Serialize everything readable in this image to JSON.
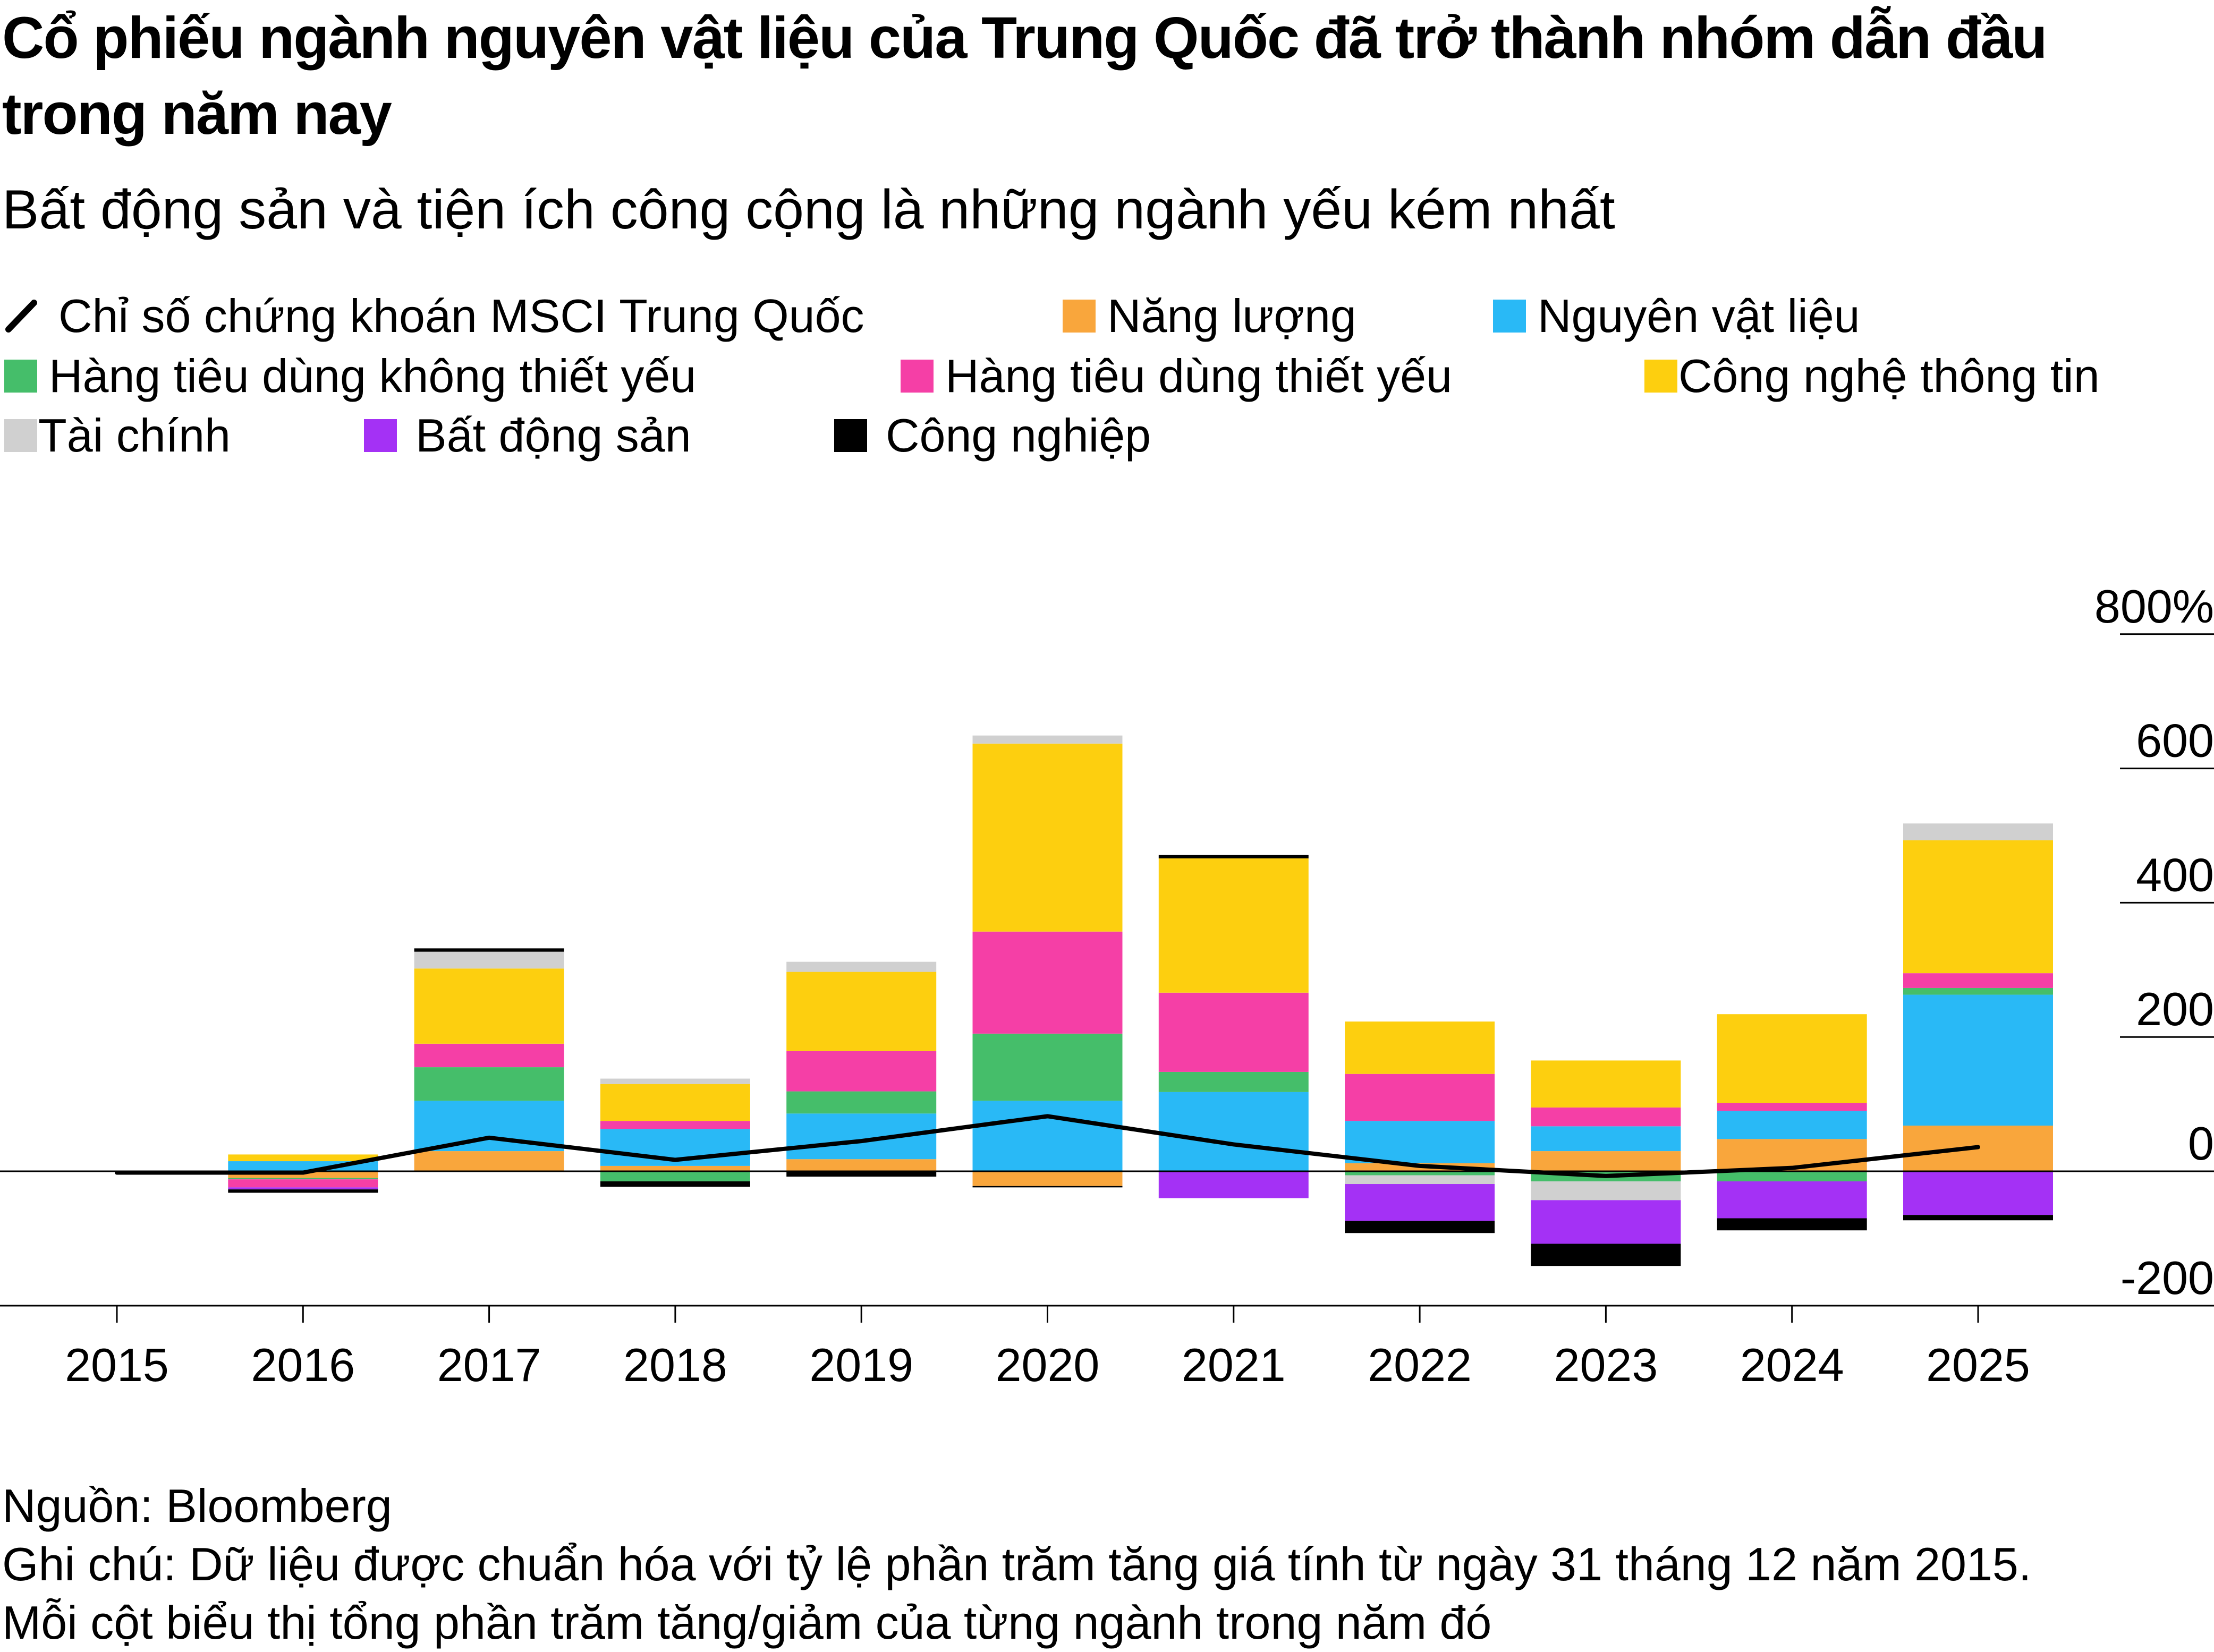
{
  "header": {
    "title": "Cổ phiếu ngành nguyên vật liệu của Trung Quốc đã trở thành nhóm dẫn đầu trong năm nay",
    "subtitle": "Bất động sản và tiện ích công cộng là những ngành yếu kém nhất"
  },
  "legend": {
    "index": {
      "label": "Chỉ số chứng khoán MSCI Trung Quốc",
      "color": "#000000"
    },
    "energy": {
      "label": "Năng lượng",
      "color": "#F9A63C"
    },
    "materials": {
      "label": "Nguyên vật liệu",
      "color": "#29B9F6"
    },
    "discretionary": {
      "label": "Hàng tiêu dùng không thiết yếu",
      "color": "#45BE6A"
    },
    "staples": {
      "label": "Hàng tiêu dùng thiết yếu",
      "color": "#F53FA6"
    },
    "it": {
      "label": "Công nghệ thông tin",
      "color": "#FDCF0F"
    },
    "financials": {
      "label": "Tài chính",
      "color": "#D0D0D0"
    },
    "realestate": {
      "label": "Bất động sản",
      "color": "#A431F5"
    },
    "industrials": {
      "label": "Công nghiệp",
      "color": "#000000"
    }
  },
  "footer": {
    "source": "Nguồn: Bloomberg",
    "note1": "Ghi chú: Dữ liệu được chuẩn hóa với tỷ lệ phần trăm tăng giá tính từ ngày 31 tháng 12 năm 2015.",
    "note2": "Mỗi cột biểu thị tổng phần trăm tăng/giảm của từng ngành trong năm đó"
  },
  "chart_data": {
    "type": "bar",
    "stacked": true,
    "title": "Cổ phiếu ngành nguyên vật liệu của Trung Quốc đã trở thành nhóm dẫn đầu trong năm nay",
    "xlabel": "",
    "ylabel": "",
    "ylim": [
      -200,
      800
    ],
    "yticks": [
      -200,
      0,
      200,
      400,
      600,
      800
    ],
    "ytick_labels": [
      "-200",
      "0",
      "200",
      "400",
      "600",
      "800%"
    ],
    "grid": true,
    "legend_position": "top",
    "categories": [
      "2015",
      "2016",
      "2017",
      "2018",
      "2019",
      "2020",
      "2021",
      "2022",
      "2023",
      "2024",
      "2025"
    ],
    "series": [
      {
        "key": "energy",
        "name": "Năng lượng",
        "color": "#F9A63C",
        "values": [
          0,
          -10,
          30,
          8,
          18,
          -22,
          0,
          12,
          30,
          48,
          68
        ]
      },
      {
        "key": "materials",
        "name": "Nguyên vật liệu",
        "color": "#29B9F6",
        "values": [
          0,
          15,
          75,
          55,
          68,
          105,
          118,
          63,
          37,
          42,
          195
        ]
      },
      {
        "key": "discretionary",
        "name": "Hàng tiêu dùng không thiết yếu",
        "color": "#45BE6A",
        "values": [
          0,
          -2,
          50,
          -15,
          33,
          100,
          30,
          -6,
          -15,
          -15,
          10
        ]
      },
      {
        "key": "staples",
        "name": "Hàng tiêu dùng thiết yếu",
        "color": "#F53FA6",
        "values": [
          0,
          -12,
          35,
          12,
          60,
          152,
          118,
          70,
          28,
          12,
          22
        ]
      },
      {
        "key": "it",
        "name": "Công nghệ thông tin",
        "color": "#FDCF0F",
        "values": [
          0,
          10,
          112,
          55,
          118,
          280,
          200,
          78,
          70,
          132,
          198
        ]
      },
      {
        "key": "financials",
        "name": "Tài chính",
        "color": "#D0D0D0",
        "values": [
          0,
          0,
          25,
          8,
          15,
          12,
          0,
          -13,
          -28,
          0,
          25
        ]
      },
      {
        "key": "realestate",
        "name": "Bất động sản",
        "color": "#A431F5",
        "values": [
          0,
          -3,
          0,
          0,
          0,
          0,
          -40,
          -55,
          -65,
          -55,
          -65
        ]
      },
      {
        "key": "industrials",
        "name": "Công nghiệp",
        "color": "#000000",
        "values": [
          0,
          -5,
          5,
          -8,
          -8,
          -2,
          5,
          -18,
          -33,
          -18,
          -8
        ]
      }
    ],
    "line": {
      "key": "index",
      "name": "Chỉ số chứng khoán MSCI Trung Quốc",
      "color": "#000000",
      "values": [
        -2,
        -2,
        50,
        17,
        45,
        82,
        40,
        8,
        -7,
        5,
        36
      ]
    }
  }
}
